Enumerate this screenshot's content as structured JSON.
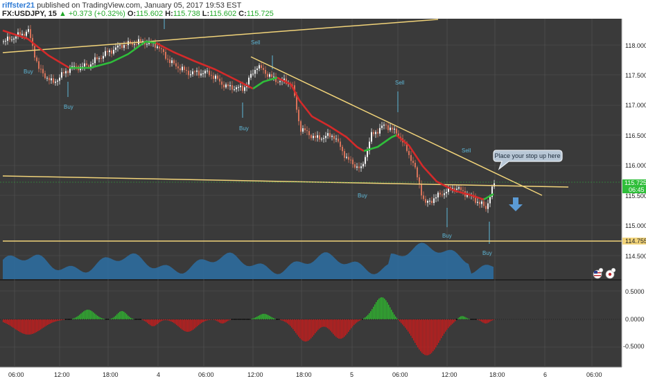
{
  "header": {
    "user": "riffster21",
    "published_text": "published on TradingView.com, January 05, 2017 19:53 EST",
    "symbol": "FX:USDJPY, 15",
    "change": "▲ +0.373 (+0.32%)",
    "open_label": "O:",
    "open": "115.602",
    "high_label": "H:",
    "high": "115.738",
    "low_label": "L:",
    "low": "115.602",
    "close_label": "C:",
    "close": "115.725"
  },
  "price_axis": {
    "ticks": [
      "118.000",
      "117.500",
      "117.000",
      "116.500",
      "116.000",
      "115.500",
      "115.000",
      "114.500"
    ],
    "current_price": "115.725",
    "countdown": "06:45",
    "horizontal_line_price": "114.755"
  },
  "oscillator_axis": {
    "ticks": [
      "0.5000",
      "0.0000",
      "-0.5000"
    ]
  },
  "time_axis": {
    "labels": [
      "06:00",
      "12:00",
      "18:00",
      "4",
      "06:00",
      "12:00",
      "18:00",
      "5",
      "06:00",
      "12:00",
      "18:00",
      "6",
      "06:00"
    ]
  },
  "annotations": {
    "callout": "Place your stop up here",
    "signals": [
      {
        "text": "Buy",
        "type": "buy"
      },
      {
        "text": "Buy",
        "type": "buy"
      },
      {
        "text": "Buy",
        "type": "buy"
      },
      {
        "text": "Sell",
        "type": "sell"
      },
      {
        "text": "Sell",
        "type": "sell"
      },
      {
        "text": "Sell",
        "type": "sell"
      },
      {
        "text": "Buy",
        "type": "buy"
      },
      {
        "text": "Buy",
        "type": "buy"
      },
      {
        "text": "Buy",
        "type": "buy"
      }
    ]
  },
  "colors": {
    "background": "#3a3a3a",
    "grid": "#555555",
    "up": "#f4f4f4",
    "down": "#d8735a",
    "ma_up": "#2fbe3a",
    "ma_down": "#d42a2a",
    "trendline": "#f2d47a",
    "volume": "#2e6d9e",
    "osc_pos": "#2fb52f",
    "osc_neg": "#c71c1c",
    "signal": "#5fb8d8",
    "arrow": "#5b9bd5"
  },
  "icons": [
    "flag-us-icon",
    "flag-jp-icon",
    "down-arrow-icon"
  ]
}
